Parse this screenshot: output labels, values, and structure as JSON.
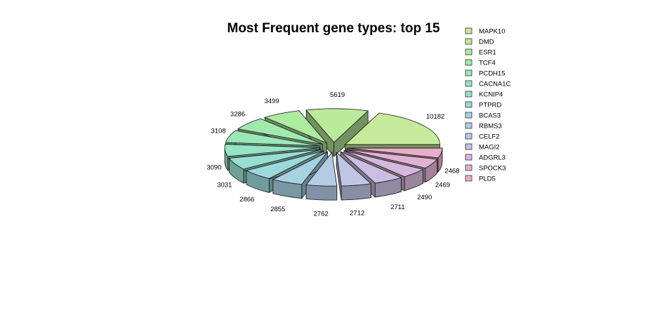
{
  "chart_data": {
    "type": "pie",
    "style": "3d-exploded",
    "title": "Most Frequent gene types: top 15",
    "categories": [
      "MAPK10",
      "DMD",
      "ESR1",
      "TCF4",
      "PCDH15",
      "CACNA1C",
      "KCNIP4",
      "PTPRD",
      "BCAS3",
      "RBMS3",
      "CELF2",
      "MAGI2",
      "ADGRL3",
      "SPOCK3",
      "PLD5"
    ],
    "values": [
      10182,
      5619,
      3499,
      3286,
      3108,
      3090,
      3031,
      2866,
      2855,
      2762,
      2712,
      2711,
      2490,
      2469,
      2468
    ],
    "colors": [
      "#c6ea9b",
      "#b9eb9b",
      "#adeba1",
      "#a1e9ac",
      "#9ae7b8",
      "#96e4c5",
      "#97dfd0",
      "#9dd9da",
      "#a7d2e1",
      "#b3cbe4",
      "#bfc5e4",
      "#cbbee1",
      "#d6b8dc",
      "#e0b3d4",
      "#e8afca"
    ],
    "legend": {
      "position": "right",
      "entries": [
        "MAPK10",
        "DMD",
        "ESR1",
        "TCF4",
        "PCDH15",
        "CACNA1C",
        "KCNIP4",
        "PTPRD",
        "BCAS3",
        "RBMS3",
        "CELF2",
        "MAGI2",
        "ADGRL3",
        "SPOCK3",
        "PLD5"
      ]
    }
  }
}
